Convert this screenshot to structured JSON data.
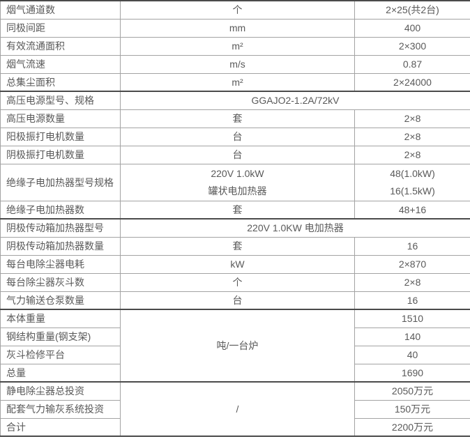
{
  "colors": {
    "text": "#595959",
    "border": "#a3a3a3",
    "section_border": "#4a4a4a",
    "background": "#ffffff"
  },
  "table": {
    "rows": [
      {
        "label": "烟气通道数",
        "cells": [
          {
            "type": "unit",
            "text": "个"
          },
          {
            "type": "value",
            "text": "2×25(共2台)"
          }
        ]
      },
      {
        "label": "同极间距",
        "cells": [
          {
            "type": "unit",
            "text": "mm"
          },
          {
            "type": "value",
            "text": "400"
          }
        ]
      },
      {
        "label": "有效流通面积",
        "cells": [
          {
            "type": "unit",
            "text": "m²"
          },
          {
            "type": "value",
            "text": "2×300"
          }
        ]
      },
      {
        "label": "烟气流速",
        "cells": [
          {
            "type": "unit",
            "text": "m/s"
          },
          {
            "type": "value",
            "text": "0.87"
          }
        ]
      },
      {
        "label": "总集尘面积",
        "cells": [
          {
            "type": "unit",
            "text": "m²"
          },
          {
            "type": "value",
            "text": "2×24000"
          }
        ]
      },
      {
        "label": "高压电源型号、规格",
        "section_start": true,
        "cells": [
          {
            "type": "value",
            "colspan": 2,
            "text": "GGAJO2-1.2A/72kV"
          }
        ]
      },
      {
        "label": "高压电源数量",
        "cells": [
          {
            "type": "unit",
            "text": "套"
          },
          {
            "type": "value",
            "text": "2×8"
          }
        ]
      },
      {
        "label": "阳极振打电机数量",
        "cells": [
          {
            "type": "unit",
            "text": "台"
          },
          {
            "type": "value",
            "text": "2×8"
          }
        ]
      },
      {
        "label": "阴极振打电机数量",
        "cells": [
          {
            "type": "unit",
            "text": "台"
          },
          {
            "type": "value",
            "text": "2×8"
          }
        ]
      },
      {
        "label": "绝缘子电加热器型号规格",
        "tall": true,
        "cells": [
          {
            "type": "unit",
            "lines": [
              "220V 1.0kW",
              "罐状电加热器"
            ]
          },
          {
            "type": "value",
            "lines": [
              "48(1.0kW)",
              "16(1.5kW)"
            ]
          }
        ]
      },
      {
        "label": "绝缘子电加热器数",
        "cells": [
          {
            "type": "unit",
            "text": "套"
          },
          {
            "type": "value",
            "text": "48+16"
          }
        ]
      },
      {
        "label": "阴极传动箱加热器型号",
        "section_start": true,
        "cells": [
          {
            "type": "value",
            "colspan": 2,
            "text": "220V 1.0KW 电加热器"
          }
        ]
      },
      {
        "label": "阴极传动箱加热器数量",
        "cells": [
          {
            "type": "unit",
            "text": "套"
          },
          {
            "type": "value",
            "text": "16"
          }
        ]
      },
      {
        "label": "每台电除尘器电耗",
        "cells": [
          {
            "type": "unit",
            "text": "kW"
          },
          {
            "type": "value",
            "text": "2×870"
          }
        ]
      },
      {
        "label": "每台除尘器灰斗数",
        "cells": [
          {
            "type": "unit",
            "text": "个"
          },
          {
            "type": "value",
            "text": "2×8"
          }
        ]
      },
      {
        "label": "气力输送仓泵数量",
        "cells": [
          {
            "type": "unit",
            "text": "台"
          },
          {
            "type": "value",
            "text": "16"
          }
        ]
      },
      {
        "label": "本体重量",
        "section_start": true,
        "cells": [
          {
            "type": "unit",
            "rowspan": 4,
            "text": "吨/一台炉"
          },
          {
            "type": "value",
            "text": "1510"
          }
        ]
      },
      {
        "label": "钢结构重量(钢支架)",
        "cells": [
          {
            "type": "value",
            "text": "140"
          }
        ]
      },
      {
        "label": "灰斗检修平台",
        "cells": [
          {
            "type": "value",
            "text": "40"
          }
        ]
      },
      {
        "label": "总量",
        "cells": [
          {
            "type": "value",
            "text": "1690"
          }
        ]
      },
      {
        "label": "静电除尘器总投资",
        "section_start": true,
        "cells": [
          {
            "type": "unit",
            "rowspan": 3,
            "text": "/"
          },
          {
            "type": "value",
            "text": "2050万元"
          }
        ]
      },
      {
        "label": "配套气力输灰系统投资",
        "cells": [
          {
            "type": "value",
            "text": "150万元"
          }
        ]
      },
      {
        "label": "合计",
        "cells": [
          {
            "type": "value",
            "text": "2200万元"
          }
        ]
      }
    ]
  }
}
